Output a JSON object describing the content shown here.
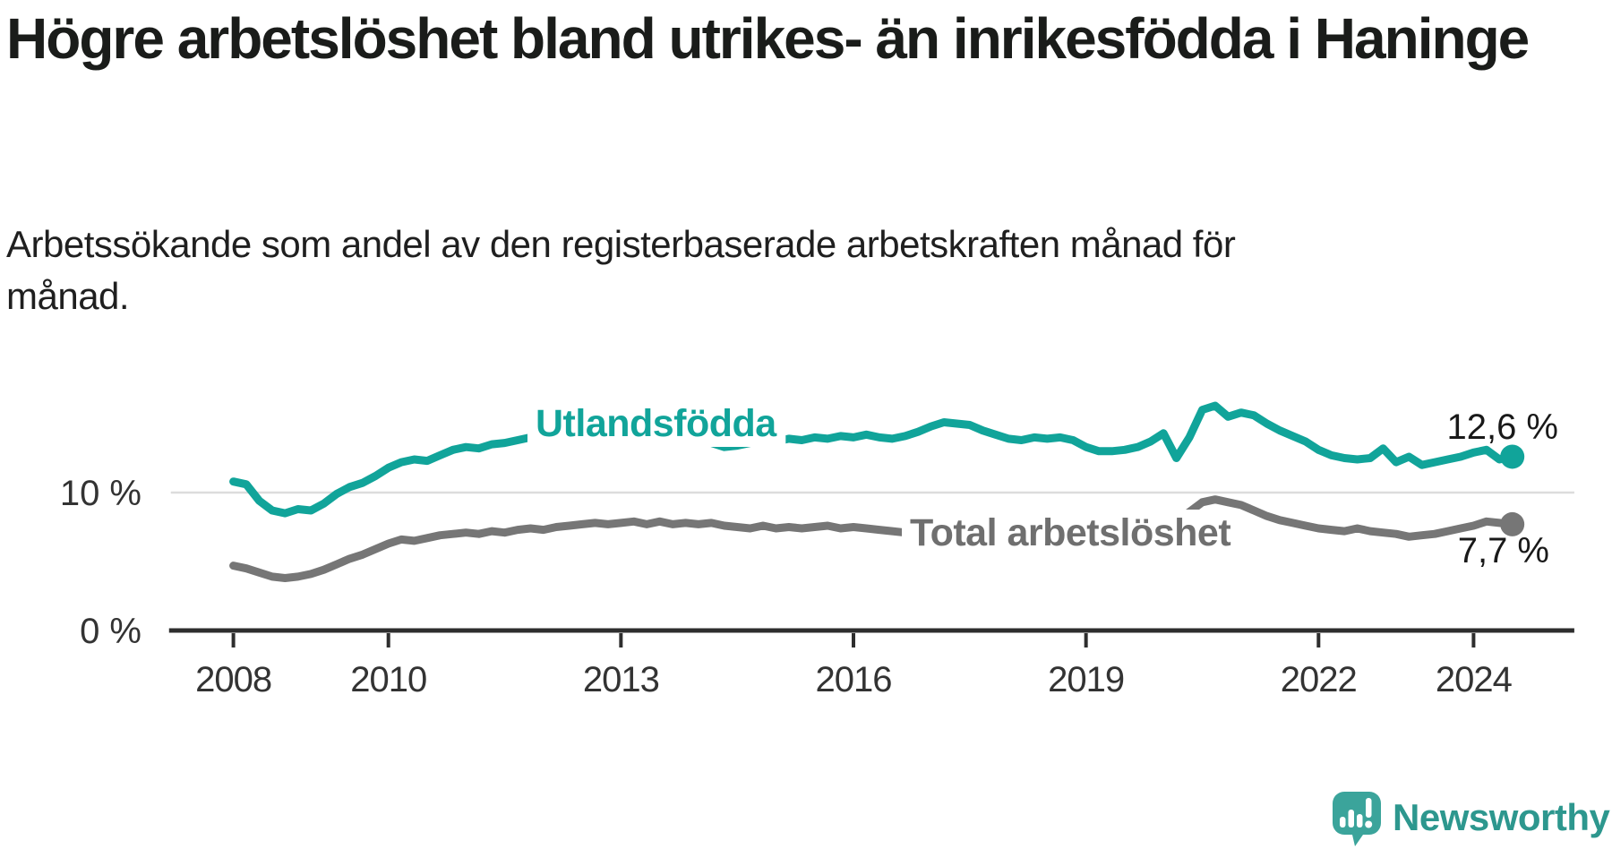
{
  "page": {
    "background": "#ffffff"
  },
  "header": {
    "title": "Högre arbetslöshet bland utrikes- än inrikesfödda i Haninge",
    "subtitle_lines": [
      "Arbetssökande som andel av den registerbaserade arbetskraften månad för",
      "månad."
    ]
  },
  "footer": {
    "brand": "Newsworthy",
    "logo_icon": "newsworthy-speech-bubble-chart-icon",
    "brand_color": "#2D978E",
    "icon_color": "#3BA49B"
  },
  "chart_data": {
    "type": "line",
    "title": "Högre arbetslöshet bland utrikes- än inrikesfödda i Haninge",
    "xlabel": "",
    "ylabel": "%",
    "x_start": 2008.0,
    "x_step_years": 0.1666667,
    "xlim": [
      2007.17,
      2025.3
    ],
    "ylim": [
      0,
      18
    ],
    "grid": "horizontal-10-only",
    "legend_position": "inline-labels",
    "x_ticks": [
      2008,
      2010,
      2013,
      2016,
      2019,
      2022,
      2024
    ],
    "y_axis": {
      "gridlines": [
        10
      ],
      "ticks": [
        {
          "value": 10,
          "label": "10 %"
        },
        {
          "value": 0,
          "label": "0 %"
        }
      ]
    },
    "series": [
      {
        "name": "Utlandsfödda",
        "color": "#11A49A",
        "label_color": "#11A49A",
        "end_label": "12,6 %",
        "end_value": 12.6,
        "values": [
          10.8,
          10.6,
          9.4,
          8.7,
          8.5,
          8.8,
          8.7,
          9.2,
          9.9,
          10.4,
          10.7,
          11.2,
          11.8,
          12.2,
          12.4,
          12.3,
          12.7,
          13.1,
          13.3,
          13.2,
          13.5,
          13.6,
          13.8,
          14.0,
          13.9,
          14.1,
          14.0,
          14.2,
          14.1,
          14.2,
          14.0,
          14.2,
          14.1,
          14.0,
          13.9,
          14.0,
          13.8,
          13.6,
          13.3,
          13.4,
          13.6,
          13.8,
          13.7,
          13.9,
          13.8,
          14.0,
          13.9,
          14.1,
          14.0,
          14.2,
          14.0,
          13.9,
          14.1,
          14.4,
          14.8,
          15.1,
          15.0,
          14.9,
          14.5,
          14.2,
          13.9,
          13.8,
          14.0,
          13.9,
          14.0,
          13.8,
          13.3,
          13.0,
          13.0,
          13.1,
          13.3,
          13.7,
          14.3,
          12.5,
          14.0,
          16.0,
          16.3,
          15.5,
          15.8,
          15.6,
          15.0,
          14.5,
          14.1,
          13.7,
          13.1,
          12.7,
          12.5,
          12.4,
          12.5,
          13.2,
          12.2,
          12.6,
          12.0,
          12.2,
          12.4,
          12.6,
          12.9,
          13.1,
          12.4,
          12.6
        ]
      },
      {
        "name": "Total arbetslöshet",
        "color": "#767676",
        "label_color": "#6F6F6F",
        "end_label": "7,7 %",
        "end_value": 7.7,
        "values": [
          4.7,
          4.5,
          4.2,
          3.9,
          3.8,
          3.9,
          4.1,
          4.4,
          4.8,
          5.2,
          5.5,
          5.9,
          6.3,
          6.6,
          6.5,
          6.7,
          6.9,
          7.0,
          7.1,
          7.0,
          7.2,
          7.1,
          7.3,
          7.4,
          7.3,
          7.5,
          7.6,
          7.7,
          7.8,
          7.7,
          7.8,
          7.9,
          7.7,
          7.9,
          7.7,
          7.8,
          7.7,
          7.8,
          7.6,
          7.5,
          7.4,
          7.6,
          7.4,
          7.5,
          7.4,
          7.5,
          7.6,
          7.4,
          7.5,
          7.4,
          7.3,
          7.2,
          7.1,
          7.0,
          7.0,
          6.9,
          6.9,
          6.8,
          6.8,
          6.7,
          6.7,
          6.6,
          6.7,
          6.6,
          6.7,
          6.8,
          6.8,
          6.9,
          7.0,
          7.0,
          7.1,
          7.2,
          7.4,
          7.9,
          8.6,
          9.3,
          9.5,
          9.3,
          9.1,
          8.7,
          8.3,
          8.0,
          7.8,
          7.6,
          7.4,
          7.3,
          7.2,
          7.4,
          7.2,
          7.1,
          7.0,
          6.8,
          6.9,
          7.0,
          7.2,
          7.4,
          7.6,
          7.9,
          7.8,
          7.7
        ]
      }
    ],
    "annotations": {
      "inline_labels": [
        "Utlandsfödda",
        "Total arbetslöshet"
      ],
      "end_value_labels": [
        "12,6 %",
        "7,7 %"
      ]
    },
    "colors": {
      "axis": "#2e2e2e",
      "gridline": "#dcdcdc",
      "tick_text": "#333333",
      "value_text": "#191919"
    }
  }
}
